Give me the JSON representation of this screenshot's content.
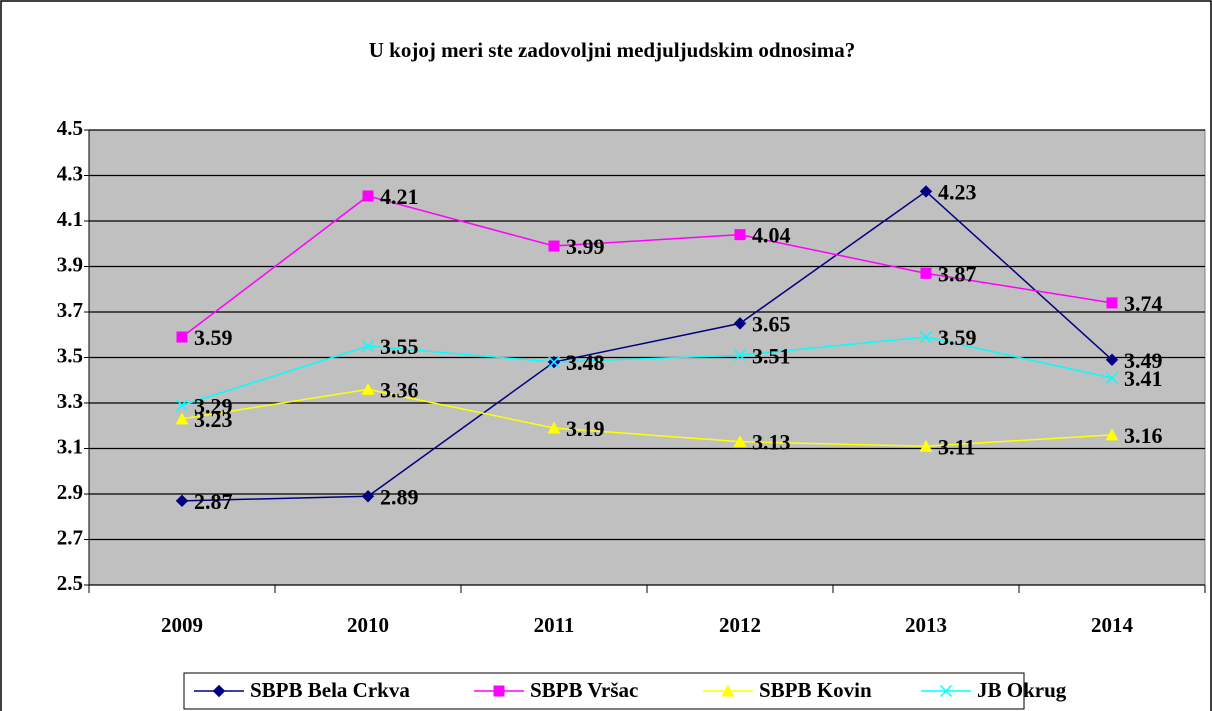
{
  "chart_data": {
    "type": "line",
    "title": "U kojoj meri ste zadovoljni medjuljudskim odnosima?",
    "categories": [
      "2009",
      "2010",
      "2011",
      "2012",
      "2013",
      "2014"
    ],
    "series": [
      {
        "name": "SBPB Bela Crkva",
        "color": "#000080",
        "marker": "diamond",
        "values": [
          2.87,
          2.89,
          3.48,
          3.65,
          4.23,
          3.49
        ]
      },
      {
        "name": "SBPB Vršac",
        "color": "#ff00ff",
        "marker": "square",
        "values": [
          3.59,
          4.21,
          3.99,
          4.04,
          3.87,
          3.74
        ]
      },
      {
        "name": "SBPB Kovin",
        "color": "#ffff00",
        "marker": "triangle",
        "values": [
          3.23,
          3.36,
          3.19,
          3.13,
          3.11,
          3.16
        ]
      },
      {
        "name": "JB Okrug",
        "color": "#00ffff",
        "marker": "x",
        "values": [
          3.29,
          3.55,
          3.48,
          3.51,
          3.59,
          3.41
        ]
      }
    ],
    "ylim": [
      2.5,
      4.5
    ],
    "yticks": [
      2.5,
      2.7,
      2.9,
      3.1,
      3.3,
      3.5,
      3.7,
      3.9,
      4.1,
      4.3,
      4.5
    ],
    "grid": true,
    "legend": "bottom"
  }
}
